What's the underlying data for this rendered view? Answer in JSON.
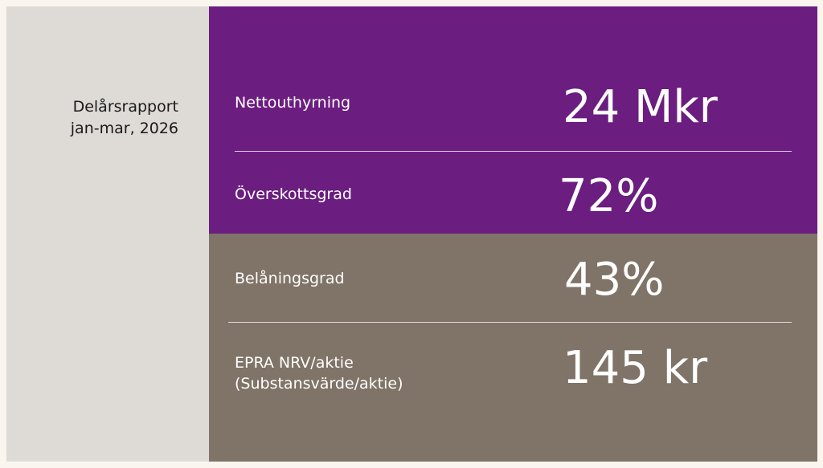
{
  "report": {
    "line1": "Delårsrapport",
    "line2": "jan-mar, 2026"
  },
  "kpis": [
    {
      "label": "Nettouthyrning",
      "value": "24 Mkr"
    },
    {
      "label": "Överskottsgrad",
      "value": "72%"
    },
    {
      "label": "Belåningsgrad",
      "value": "43%"
    },
    {
      "label_line1": "EPRA NRV/aktie",
      "label_line2": "(Substansvärde/aktie)",
      "value": "145 kr"
    }
  ],
  "colors": {
    "purple": "#6b1d80",
    "taupe": "#807367",
    "side": "#dedbd7"
  }
}
